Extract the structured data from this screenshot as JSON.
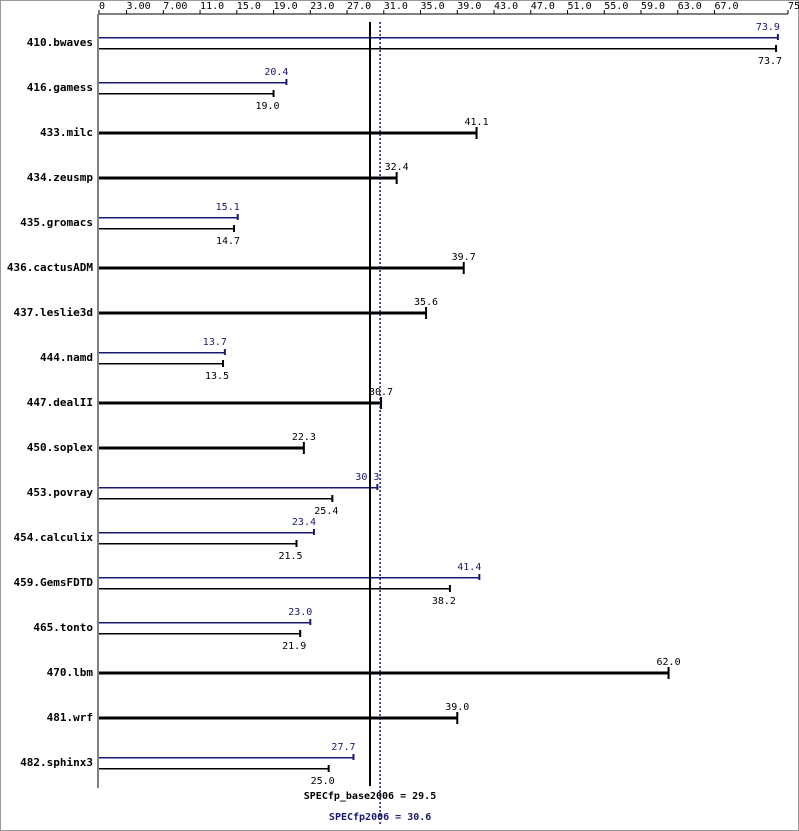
{
  "chart_data": {
    "type": "bar",
    "orientation": "horizontal",
    "categories": [
      "410.bwaves",
      "416.gamess",
      "433.milc",
      "434.zeusmp",
      "435.gromacs",
      "436.cactusADM",
      "437.leslie3d",
      "444.namd",
      "447.dealII",
      "450.soplex",
      "453.povray",
      "454.calculix",
      "459.GemsFDTD",
      "465.tonto",
      "470.lbm",
      "481.wrf",
      "482.sphinx3"
    ],
    "series": [
      {
        "color": "#000000",
        "values": [
          73.7,
          19.0,
          41.1,
          32.4,
          14.7,
          39.7,
          35.6,
          13.5,
          30.7,
          22.3,
          25.4,
          21.5,
          38.2,
          21.9,
          62.0,
          39.0,
          25.0
        ],
        "value_labels": [
          "73.7",
          "19.0",
          "41.1",
          "32.4",
          "14.7",
          "39.7",
          "35.6",
          "13.5",
          "30.7",
          "22.3",
          "25.4",
          "21.5",
          "38.2",
          "21.9",
          "62.0",
          "39.0",
          "25.0"
        ]
      },
      {
        "color": "#191970",
        "values": [
          73.9,
          20.4,
          null,
          null,
          15.1,
          null,
          null,
          13.7,
          null,
          null,
          30.3,
          23.4,
          41.4,
          23.0,
          null,
          null,
          27.7
        ],
        "value_labels": [
          "73.9",
          "20.4",
          null,
          null,
          "15.1",
          null,
          null,
          "13.7",
          null,
          null,
          "30.3",
          "23.4",
          "41.4",
          "23.0",
          null,
          null,
          "27.7"
        ]
      }
    ],
    "xlim": [
      0,
      75
    ],
    "xticks": [
      0,
      {
        "value": 3,
        "label": "3.00"
      },
      {
        "value": 7,
        "label": "7.00"
      },
      {
        "value": 11,
        "label": "11.0"
      },
      {
        "value": 15,
        "label": "15.0"
      },
      {
        "value": 19,
        "label": "19.0"
      },
      {
        "value": 23,
        "label": "23.0"
      },
      {
        "value": 27,
        "label": "27.0"
      },
      {
        "value": 31,
        "label": "31.0"
      },
      {
        "value": 35,
        "label": "35.0"
      },
      {
        "value": 39,
        "label": "39.0"
      },
      {
        "value": 43,
        "label": "43.0"
      },
      {
        "value": 47,
        "label": "47.0"
      },
      {
        "value": 51,
        "label": "51.0"
      },
      {
        "value": 55,
        "label": "55.0"
      },
      {
        "value": 59,
        "label": "59.0"
      },
      {
        "value": 63,
        "label": "63.0"
      },
      {
        "value": 67,
        "label": "67.0"
      },
      {
        "value": 75,
        "label": "75.0"
      }
    ],
    "reference_lines": [
      {
        "value": 29.5,
        "label": "SPECfp_base2006 = 29.5",
        "color": "#000000",
        "style": "solid"
      },
      {
        "value": 30.6,
        "label": "SPECfp2006 = 30.6",
        "color": "#191970",
        "style": "dotted"
      }
    ]
  }
}
